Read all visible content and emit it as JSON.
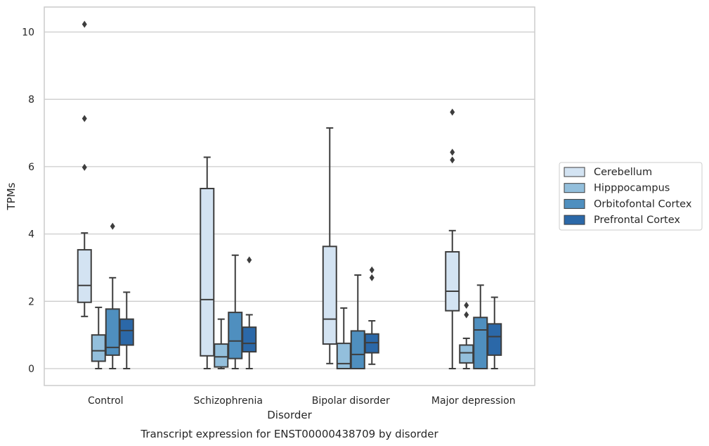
{
  "chart_data": {
    "type": "box",
    "caption": "Transcript expression for ENST00000438709 by disorder",
    "xlabel": "Disorder",
    "ylabel": "TPMs",
    "ylim": [
      -0.5,
      10.75
    ],
    "yticks": [
      0,
      2,
      4,
      6,
      8,
      10
    ],
    "grid": "horizontal",
    "legend_position": "right",
    "categories": [
      "Control",
      "Schizophrenia",
      "Bipolar disorder",
      "Major depression"
    ],
    "series": [
      {
        "name": "Cerebellum",
        "color": "#d3e3f2",
        "boxes": [
          {
            "whisker_low": 1.55,
            "q1": 1.97,
            "median": 2.47,
            "q3": 3.53,
            "whisker_high": 4.03,
            "outliers": [
              5.98,
              7.43,
              10.23
            ]
          },
          {
            "whisker_low": 0.0,
            "q1": 0.38,
            "median": 2.05,
            "q3": 5.35,
            "whisker_high": 6.28,
            "outliers": []
          },
          {
            "whisker_low": 0.15,
            "q1": 0.73,
            "median": 1.47,
            "q3": 3.63,
            "whisker_high": 7.15,
            "outliers": []
          },
          {
            "whisker_low": 0.0,
            "q1": 1.72,
            "median": 2.3,
            "q3": 3.47,
            "whisker_high": 4.1,
            "outliers": [
              6.2,
              6.43,
              7.62
            ]
          }
        ]
      },
      {
        "name": "Hipppocampus",
        "color": "#93bfdc",
        "boxes": [
          {
            "whisker_low": 0.0,
            "q1": 0.22,
            "median": 0.53,
            "q3": 1.0,
            "whisker_high": 1.82,
            "outliers": []
          },
          {
            "whisker_low": 0.0,
            "q1": 0.05,
            "median": 0.35,
            "q3": 0.73,
            "whisker_high": 1.47,
            "outliers": []
          },
          {
            "whisker_low": 0.0,
            "q1": 0.0,
            "median": 0.15,
            "q3": 0.75,
            "whisker_high": 1.8,
            "outliers": []
          },
          {
            "whisker_low": 0.0,
            "q1": 0.17,
            "median": 0.47,
            "q3": 0.7,
            "whisker_high": 0.9,
            "outliers": [
              1.6,
              1.88
            ]
          }
        ]
      },
      {
        "name": "Orbitofontal Cortex",
        "color": "#4f8fbf",
        "boxes": [
          {
            "whisker_low": 0.0,
            "q1": 0.4,
            "median": 0.63,
            "q3": 1.77,
            "whisker_high": 2.7,
            "outliers": [
              4.23
            ]
          },
          {
            "whisker_low": 0.0,
            "q1": 0.3,
            "median": 0.82,
            "q3": 1.67,
            "whisker_high": 3.37,
            "outliers": []
          },
          {
            "whisker_low": 0.0,
            "q1": 0.0,
            "median": 0.42,
            "q3": 1.12,
            "whisker_high": 2.78,
            "outliers": []
          },
          {
            "whisker_low": 0.0,
            "q1": 0.0,
            "median": 1.15,
            "q3": 1.52,
            "whisker_high": 2.48,
            "outliers": []
          }
        ]
      },
      {
        "name": "Prefrontal Cortex",
        "color": "#2b68a8",
        "boxes": [
          {
            "whisker_low": 0.0,
            "q1": 0.7,
            "median": 1.13,
            "q3": 1.47,
            "whisker_high": 2.27,
            "outliers": []
          },
          {
            "whisker_low": 0.0,
            "q1": 0.5,
            "median": 0.75,
            "q3": 1.23,
            "whisker_high": 1.6,
            "outliers": [
              3.23
            ]
          },
          {
            "whisker_low": 0.13,
            "q1": 0.47,
            "median": 0.77,
            "q3": 1.03,
            "whisker_high": 1.42,
            "outliers": [
              2.7,
              2.93
            ]
          },
          {
            "whisker_low": 0.0,
            "q1": 0.4,
            "median": 0.95,
            "q3": 1.33,
            "whisker_high": 2.12,
            "outliers": []
          }
        ]
      }
    ]
  }
}
